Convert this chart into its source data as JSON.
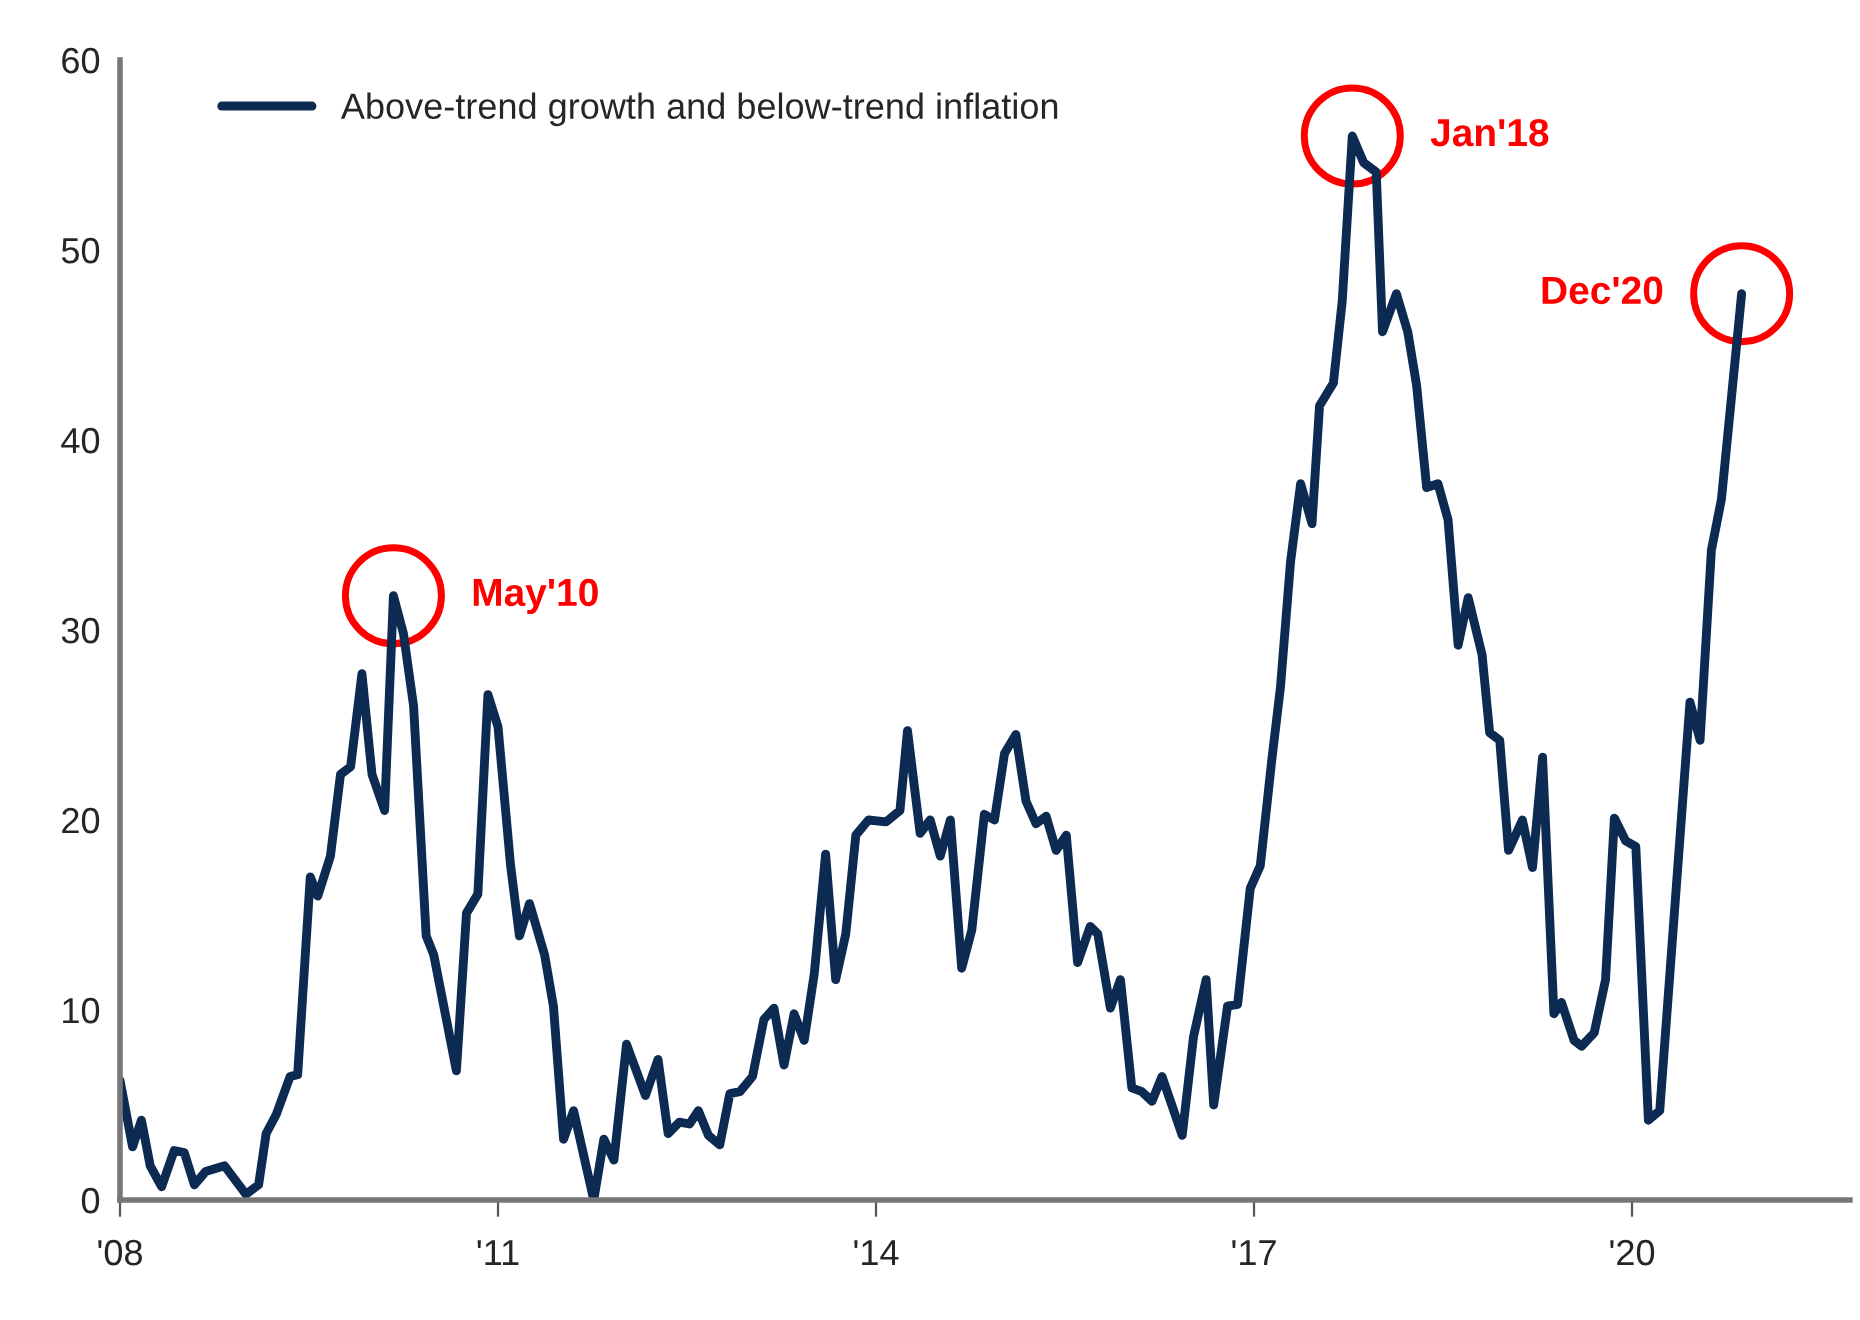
{
  "chart_data": {
    "type": "line",
    "x": [
      2008.0,
      2008.1,
      2008.17,
      2008.24,
      2008.33,
      2008.43,
      2008.51,
      2008.59,
      2008.68,
      2008.83,
      2009.0,
      2009.1,
      2009.16,
      2009.24,
      2009.35,
      2009.41,
      2009.51,
      2009.57,
      2009.67,
      2009.75,
      2009.83,
      2009.92,
      2010.0,
      2010.1,
      2010.17,
      2010.25,
      2010.33,
      2010.43,
      2010.49,
      2010.67,
      2010.75,
      2010.84,
      2010.92,
      2011.0,
      2011.1,
      2011.17,
      2011.25,
      2011.37,
      2011.44,
      2011.52,
      2011.6,
      2011.76,
      2011.84,
      2011.92,
      2012.02,
      2012.17,
      2012.27,
      2012.35,
      2012.44,
      2012.52,
      2012.59,
      2012.67,
      2012.76,
      2012.84,
      2012.92,
      2013.02,
      2013.11,
      2013.19,
      2013.27,
      2013.35,
      2013.43,
      2013.51,
      2013.6,
      2013.68,
      2013.76,
      2013.84,
      2013.94,
      2014.08,
      2014.19,
      2014.25,
      2014.35,
      2014.43,
      2014.51,
      2014.59,
      2014.68,
      2014.76,
      2014.86,
      2014.94,
      2015.02,
      2015.11,
      2015.19,
      2015.27,
      2015.35,
      2015.43,
      2015.51,
      2015.6,
      2015.7,
      2015.76,
      2015.86,
      2015.94,
      2016.03,
      2016.11,
      2016.19,
      2016.27,
      2016.43,
      2016.52,
      2016.62,
      2016.68,
      2016.79,
      2016.87,
      2016.97,
      2017.05,
      2017.14,
      2017.21,
      2017.29,
      2017.37,
      2017.46,
      2017.52,
      2017.63,
      2017.7,
      2017.78,
      2017.87,
      2017.97,
      2018.02,
      2018.13,
      2018.22,
      2018.29,
      2018.37,
      2018.46,
      2018.54,
      2018.62,
      2018.7,
      2018.81,
      2018.87,
      2018.95,
      2019.02,
      2019.13,
      2019.21,
      2019.29,
      2019.38,
      2019.44,
      2019.54,
      2019.6,
      2019.7,
      2019.79,
      2019.86,
      2019.95,
      2020.03,
      2020.13,
      2020.22,
      2020.46,
      2020.54,
      2020.63,
      2020.71,
      2020.87
    ],
    "series": [
      {
        "name": "Above-trend growth and below-trend inflation",
        "color": "#0d2b52",
        "values": [
          6.3,
          2.8,
          4.2,
          1.8,
          0.7,
          2.6,
          2.5,
          0.8,
          1.5,
          1.8,
          0.3,
          0.8,
          3.5,
          4.5,
          6.5,
          6.6,
          17,
          16,
          18.1,
          22.4,
          22.8,
          27.7,
          22.4,
          20.5,
          31.8,
          29.8,
          26,
          13.9,
          12.9,
          6.8,
          15.1,
          16.1,
          26.6,
          24.9,
          17.6,
          13.9,
          15.6,
          12.9,
          10.2,
          3.2,
          4.7,
          0,
          3.2,
          2.1,
          8.2,
          5.5,
          7.4,
          3.5,
          4.1,
          4.0,
          4.7,
          3.4,
          2.9,
          5.6,
          5.7,
          6.5,
          9.5,
          10.1,
          7.1,
          9.8,
          8.4,
          11.9,
          18.2,
          11.6,
          14,
          19.2,
          20,
          19.9,
          20.5,
          24.7,
          19.3,
          20,
          18.1,
          20,
          12.2,
          14.2,
          20.3,
          20,
          23.5,
          24.5,
          21,
          19.8,
          20.2,
          18.4,
          19.2,
          12.5,
          14.4,
          14,
          10.1,
          11.6,
          5.9,
          5.7,
          5.2,
          6.5,
          3.4,
          8.6,
          11.6,
          5,
          10.2,
          10.3,
          16.4,
          17.6,
          23.1,
          27,
          33.6,
          37.7,
          35.6,
          41.8,
          43,
          47.3,
          56,
          54.6,
          54.1,
          45.7,
          47.7,
          45.7,
          42.9,
          37.5,
          37.7,
          35.8,
          29.2,
          31.7,
          28.7,
          24.6,
          24.2,
          18.4,
          20,
          17.5,
          23.3,
          9.8,
          10.4,
          8.4,
          8.1,
          8.8,
          11.6,
          20.1,
          18.9,
          18.6,
          4.2,
          4.7,
          26.2,
          24.2,
          34.2,
          36.9,
          47.7
        ]
      }
    ],
    "xlim": [
      2008,
      2021.73
    ],
    "xticks": [
      {
        "value": 2008,
        "label": "'08"
      },
      {
        "value": 2011,
        "label": "'11"
      },
      {
        "value": 2014,
        "label": "'14"
      },
      {
        "value": 2017,
        "label": "'17"
      },
      {
        "value": 2020,
        "label": "'20"
      }
    ],
    "ylim": [
      0,
      60
    ],
    "yticks": [
      0,
      10,
      20,
      30,
      40,
      50,
      60
    ],
    "annotations": [
      {
        "text": "May'10",
        "x": 2010.17,
        "y": 31.8
      },
      {
        "text": "Jan'18",
        "x": 2017.78,
        "y": 56
      },
      {
        "text": "Dec'20",
        "x": 2020.87,
        "y": 47.7
      }
    ],
    "grid": false,
    "legend": "top left",
    "marker": "none",
    "line_style": "solid"
  }
}
